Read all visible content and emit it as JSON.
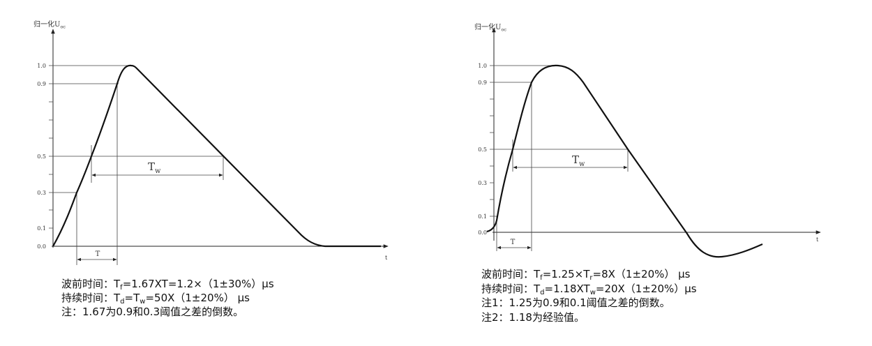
{
  "panels": [
    {
      "y_axis_label": {
        "main": "归一化U",
        "sub": "oc"
      },
      "yticks": [
        "1.0",
        "0.9",
        "0.5",
        "0.3",
        "0.1",
        "0.0"
      ],
      "x_axis_label": "t",
      "t_label": "T",
      "tw_label": {
        "main": "T",
        "sub": "w"
      },
      "notes": [
        [
          "波前时间：T",
          "f",
          "=1.67XT=1.2×（1±30%）μs"
        ],
        [
          "持续时间：T",
          "d",
          "=T",
          "w",
          "=50X（1±20%） μs"
        ],
        [
          "注：1.67为0.9和0.3阈值之差的倒数。"
        ]
      ]
    },
    {
      "y_axis_label": {
        "main": "归一化U",
        "sub": "oc"
      },
      "yticks": [
        "1.0",
        "0.9",
        "0.5",
        "0.3",
        "0.1",
        "0.0"
      ],
      "x_axis_label": "t",
      "t_label": "T",
      "tw_label": {
        "main": "T",
        "sub": "w"
      },
      "notes": [
        [
          "波前时间：T",
          "f",
          "=1.25×T",
          "r",
          "=8X（1±20%） μs"
        ],
        [
          "持续时间：T",
          "d",
          "=1.18XT",
          "w",
          "=20X（1±20%）μs"
        ],
        [
          "注1：1.25为0.9和0.1阈值之差的倒数。"
        ],
        [
          "注2：1.18为经验值。"
        ]
      ]
    }
  ]
}
